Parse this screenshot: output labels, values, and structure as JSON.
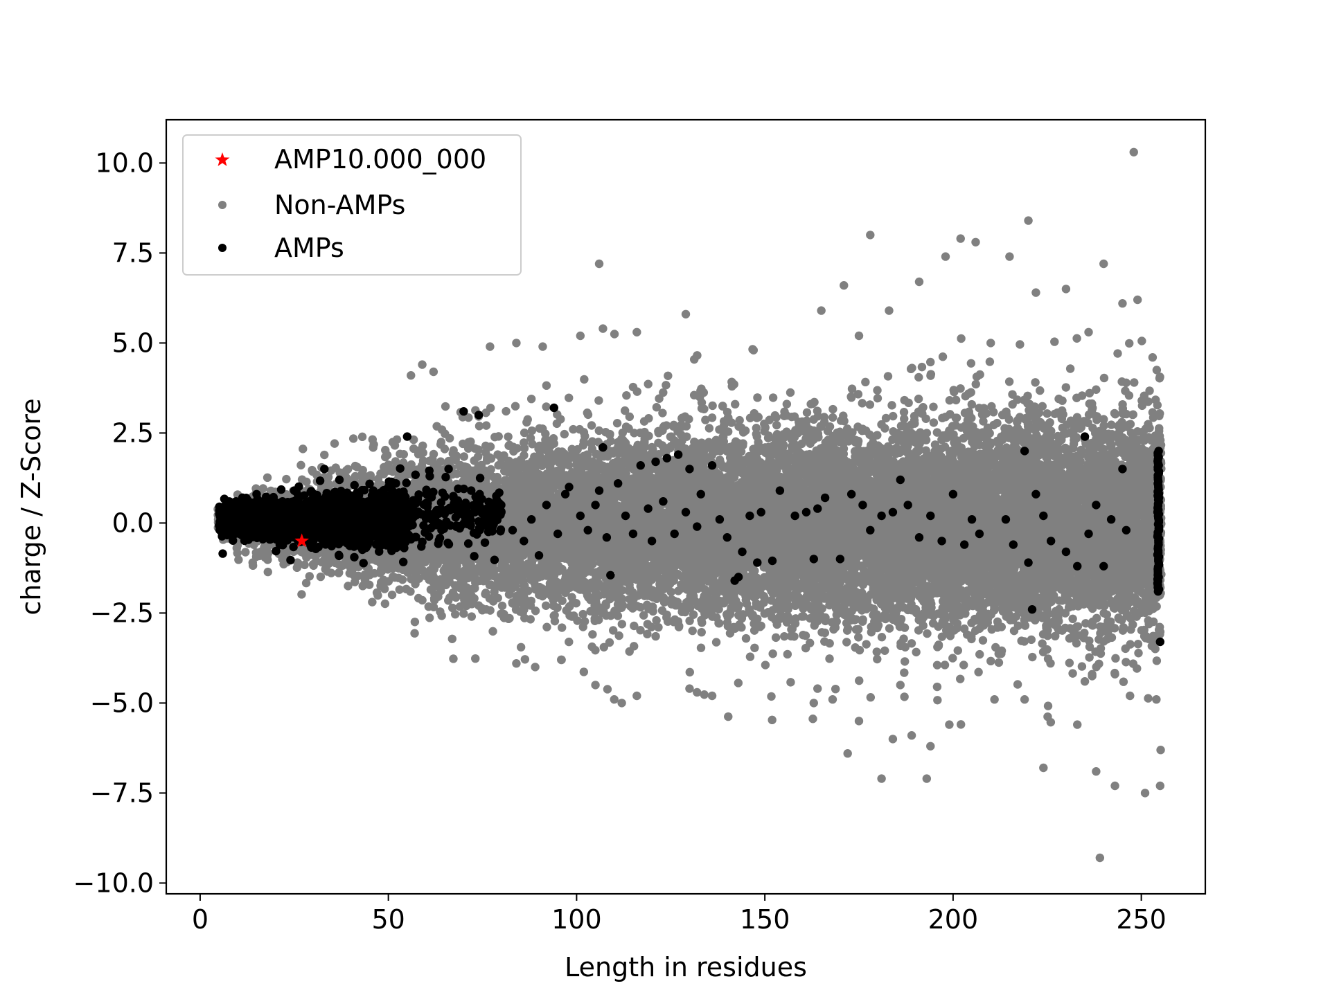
{
  "chart_data": {
    "type": "scatter",
    "title": "",
    "xlabel": "Length in residues",
    "ylabel": "charge / Z-Score",
    "xlim": [
      -9,
      267
    ],
    "ylim": [
      -10.3,
      11.2
    ],
    "xticks": [
      0,
      50,
      100,
      150,
      200,
      250
    ],
    "yticks": [
      10.0,
      7.5,
      5.0,
      2.5,
      0.0,
      -2.5,
      -5.0,
      -7.5,
      -10.0
    ],
    "xtick_labels": [
      "0",
      "50",
      "100",
      "150",
      "200",
      "250"
    ],
    "ytick_labels": [
      "10.0",
      "7.5",
      "5.0",
      "2.5",
      "0.0",
      "−2.5",
      "−5.0",
      "−7.5",
      "−10.0"
    ],
    "legend": {
      "placement": "top-left",
      "entries": [
        {
          "label": "AMP10.000_000",
          "marker": "star",
          "color": "#ff0000"
        },
        {
          "label": "Non-AMPs",
          "marker": "circle",
          "color": "#808080"
        },
        {
          "label": "AMPs",
          "marker": "circle",
          "color": "#000000"
        }
      ]
    },
    "series": [
      {
        "name": "Non-AMPs",
        "color": "#808080",
        "marker": "circle",
        "envelope": {
          "x": [
            5,
            20,
            40,
            55,
            75,
            100,
            130,
            160,
            200,
            230,
            255
          ],
          "sd": [
            0.25,
            0.45,
            0.65,
            0.9,
            1.05,
            1.15,
            1.25,
            1.3,
            1.35,
            1.4,
            1.45
          ]
        },
        "outliers": [
          [
            248,
            10.3
          ],
          [
            239,
            -9.3
          ],
          [
            220,
            8.4
          ],
          [
            178,
            8.0
          ],
          [
            202,
            7.9
          ],
          [
            206,
            7.8
          ],
          [
            106,
            7.2
          ],
          [
            240,
            7.2
          ],
          [
            198,
            7.4
          ],
          [
            215,
            7.4
          ],
          [
            171,
            6.6
          ],
          [
            191,
            6.7
          ],
          [
            222,
            6.4
          ],
          [
            230,
            6.5
          ],
          [
            245,
            6.1
          ],
          [
            249,
            6.2
          ],
          [
            129,
            5.8
          ],
          [
            165,
            5.9
          ],
          [
            183,
            5.9
          ],
          [
            236,
            5.3
          ],
          [
            107,
            5.4
          ],
          [
            116,
            5.3
          ],
          [
            77,
            4.9
          ],
          [
            84,
            5.0
          ],
          [
            91,
            4.9
          ],
          [
            101,
            5.2
          ],
          [
            147,
            4.8
          ],
          [
            59,
            4.4
          ],
          [
            56,
            4.1
          ],
          [
            62,
            4.2
          ],
          [
            253,
            4.6
          ],
          [
            210,
            5.0
          ],
          [
            175,
            5.2
          ],
          [
            181,
            -7.1
          ],
          [
            193,
            -7.1
          ],
          [
            224,
            -6.8
          ],
          [
            243,
            -7.3
          ],
          [
            251,
            -7.5
          ],
          [
            255,
            -7.3
          ],
          [
            238,
            -6.9
          ],
          [
            172,
            -6.4
          ],
          [
            184,
            -6.0
          ],
          [
            189,
            -5.9
          ],
          [
            194,
            -6.2
          ],
          [
            199,
            -5.6
          ],
          [
            163,
            -5.0
          ],
          [
            168,
            -4.9
          ],
          [
            175,
            -5.5
          ],
          [
            211,
            -4.9
          ],
          [
            219,
            -4.9
          ],
          [
            233,
            -5.6
          ],
          [
            247,
            -4.8
          ],
          [
            254,
            -4.9
          ],
          [
            110,
            -4.9
          ],
          [
            112,
            -5.0
          ],
          [
            105,
            -4.5
          ],
          [
            116,
            -4.8
          ],
          [
            130,
            -4.6
          ],
          [
            136,
            -4.8
          ],
          [
            89,
            -4.0
          ],
          [
            96,
            -3.8
          ],
          [
            84,
            -3.9
          ],
          [
            164,
            -4.6
          ],
          [
            186,
            -4.5
          ],
          [
            243,
            -4.2
          ],
          [
            235,
            -4.4
          ]
        ],
        "approx_count": 30000
      },
      {
        "name": "AMPs",
        "color": "#000000",
        "marker": "circle",
        "cluster": {
          "x_range": [
            5,
            55
          ],
          "center_y": 0.1,
          "sd": 0.35
        },
        "points": [
          [
            6,
            -0.85
          ],
          [
            15,
            0.8
          ],
          [
            25,
            0.9
          ],
          [
            33,
            1.5
          ],
          [
            37,
            1.2
          ],
          [
            41,
            1.05
          ],
          [
            46,
            0.9
          ],
          [
            51,
            1.1
          ],
          [
            55,
            2.4
          ],
          [
            61,
            1.3
          ],
          [
            66,
            1.5
          ],
          [
            70,
            3.1
          ],
          [
            74,
            3.0
          ],
          [
            94,
            3.2
          ],
          [
            72,
            0.9
          ],
          [
            78,
            0.5
          ],
          [
            80,
            0.3
          ],
          [
            83,
            -0.2
          ],
          [
            86,
            -0.5
          ],
          [
            88,
            0.1
          ],
          [
            90,
            -0.9
          ],
          [
            92,
            0.5
          ],
          [
            95,
            -0.3
          ],
          [
            97,
            0.8
          ],
          [
            98,
            1.0
          ],
          [
            101,
            0.2
          ],
          [
            103,
            -0.2
          ],
          [
            105,
            0.5
          ],
          [
            106,
            0.9
          ],
          [
            107,
            2.1
          ],
          [
            108,
            -0.4
          ],
          [
            111,
            1.1
          ],
          [
            113,
            0.2
          ],
          [
            115,
            -0.3
          ],
          [
            117,
            1.6
          ],
          [
            119,
            0.4
          ],
          [
            121,
            1.7
          ],
          [
            123,
            0.6
          ],
          [
            124,
            1.8
          ],
          [
            126,
            -0.3
          ],
          [
            127,
            1.9
          ],
          [
            129,
            0.3
          ],
          [
            130,
            1.5
          ],
          [
            132,
            -0.1
          ],
          [
            133,
            0.8
          ],
          [
            136,
            1.6
          ],
          [
            138,
            0.1
          ],
          [
            140,
            -0.4
          ],
          [
            143,
            -1.5
          ],
          [
            144,
            -0.8
          ],
          [
            146,
            0.2
          ],
          [
            148,
            -1.1
          ],
          [
            149,
            0.3
          ],
          [
            154,
            0.9
          ],
          [
            158,
            0.2
          ],
          [
            163,
            -1.0
          ],
          [
            164,
            0.4
          ],
          [
            166,
            0.7
          ],
          [
            170,
            -1.0
          ],
          [
            173,
            0.8
          ],
          [
            176,
            0.5
          ],
          [
            178,
            -0.2
          ],
          [
            184,
            0.3
          ],
          [
            186,
            1.2
          ],
          [
            191,
            -0.4
          ],
          [
            194,
            0.2
          ],
          [
            197,
            -0.5
          ],
          [
            200,
            0.8
          ],
          [
            205,
            0.1
          ],
          [
            207,
            -0.3
          ],
          [
            214,
            0.1
          ],
          [
            216,
            -0.6
          ],
          [
            219,
            2.0
          ],
          [
            220,
            -1.1
          ],
          [
            222,
            0.8
          ],
          [
            224,
            0.2
          ],
          [
            226,
            -0.5
          ],
          [
            230,
            -0.8
          ],
          [
            233,
            -1.2
          ],
          [
            235,
            2.4
          ],
          [
            238,
            0.5
          ],
          [
            240,
            -1.2
          ],
          [
            242,
            0.1
          ],
          [
            245,
            1.5
          ],
          [
            246,
            -0.2
          ],
          [
            221,
            -2.4
          ],
          [
            236,
            -0.3
          ],
          [
            109,
            -1.45
          ],
          [
            120,
            -0.5
          ],
          [
            142,
            -1.6
          ],
          [
            152,
            -1.05
          ],
          [
            161,
            0.3
          ],
          [
            181,
            0.2
          ],
          [
            188,
            0.5
          ],
          [
            203,
            -0.6
          ]
        ],
        "stripe": {
          "x": 254.5,
          "y_range": [
            -1.9,
            2.0
          ],
          "extra": [
            [
              255,
              -3.3
            ]
          ]
        }
      },
      {
        "name": "AMP10.000_000",
        "color": "#ff0000",
        "marker": "star",
        "points": [
          [
            27,
            -0.5
          ]
        ]
      }
    ]
  }
}
